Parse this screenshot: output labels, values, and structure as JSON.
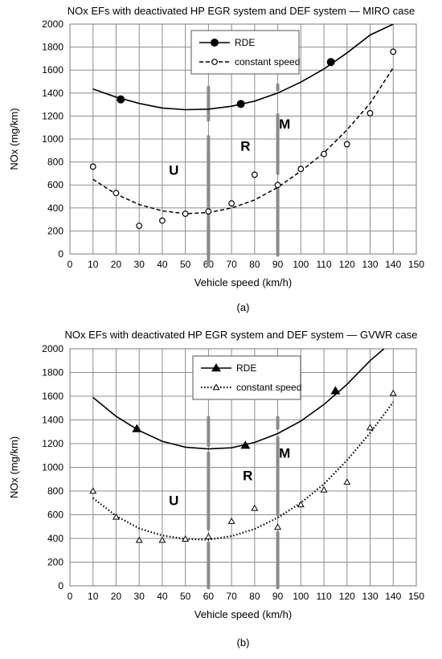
{
  "chart_data": [
    {
      "type": "line",
      "title": "NOx EFs with deactivated HP EGR system and DEF system — MIRO case",
      "xlabel": "Vehicle speed (km/h)",
      "ylabel": "NOx (mg/km)",
      "xlim": [
        0,
        150
      ],
      "ylim": [
        0,
        2000
      ],
      "xticks": [
        "0",
        "10",
        "20",
        "30",
        "40",
        "50",
        "60",
        "70",
        "80",
        "90",
        "100",
        "110",
        "120",
        "130",
        "140",
        "150"
      ],
      "yticks": [
        "0",
        "200",
        "400",
        "600",
        "800",
        "1000",
        "1200",
        "1400",
        "1600",
        "1800",
        "2000"
      ],
      "grid": true,
      "legend_position": "top-center",
      "zone_labels": [
        "U",
        "R",
        "M"
      ],
      "zone_boundaries": [
        60,
        90
      ],
      "panel_label": "(a)",
      "series": [
        {
          "name": "RDE",
          "marker": "filled-circle",
          "line": "solid",
          "points": [
            [
              22,
              1345
            ],
            [
              74,
              1305
            ],
            [
              113,
              1670
            ]
          ],
          "fit": [
            [
              10,
              1435
            ],
            [
              20,
              1365
            ],
            [
              30,
              1310
            ],
            [
              40,
              1270
            ],
            [
              50,
              1255
            ],
            [
              60,
              1260
            ],
            [
              70,
              1285
            ],
            [
              80,
              1330
            ],
            [
              90,
              1400
            ],
            [
              100,
              1495
            ],
            [
              110,
              1610
            ],
            [
              120,
              1750
            ],
            [
              130,
              1905
            ],
            [
              140,
              2000
            ]
          ]
        },
        {
          "name": "constant speed",
          "marker": "open-circle",
          "line": "dashed",
          "points": [
            [
              10,
              760
            ],
            [
              20,
              530
            ],
            [
              30,
              245
            ],
            [
              40,
              290
            ],
            [
              50,
              350
            ],
            [
              60,
              370
            ],
            [
              70,
              440
            ],
            [
              80,
              690
            ],
            [
              90,
              600
            ],
            [
              100,
              740
            ],
            [
              110,
              870
            ],
            [
              120,
              955
            ],
            [
              130,
              1225
            ],
            [
              140,
              1760
            ]
          ],
          "fit": [
            [
              10,
              650
            ],
            [
              20,
              520
            ],
            [
              30,
              430
            ],
            [
              40,
              375
            ],
            [
              50,
              350
            ],
            [
              60,
              360
            ],
            [
              70,
              400
            ],
            [
              80,
              470
            ],
            [
              90,
              580
            ],
            [
              100,
              720
            ],
            [
              110,
              880
            ],
            [
              120,
              1080
            ],
            [
              130,
              1310
            ],
            [
              140,
              1620
            ]
          ]
        }
      ]
    },
    {
      "type": "line",
      "title": "NOx EFs with deactivated HP EGR system and DEF system — GVWR case",
      "xlabel": "Vehicle speed (km/h)",
      "ylabel": "NOx (mg/km)",
      "xlim": [
        0,
        150
      ],
      "ylim": [
        0,
        2000
      ],
      "xticks": [
        "0",
        "10",
        "20",
        "30",
        "40",
        "50",
        "60",
        "70",
        "80",
        "90",
        "100",
        "110",
        "120",
        "130",
        "140",
        "150"
      ],
      "yticks": [
        "0",
        "200",
        "400",
        "600",
        "800",
        "1000",
        "1200",
        "1400",
        "1600",
        "1800",
        "2000"
      ],
      "grid": true,
      "legend_position": "top-center",
      "zone_labels": [
        "U",
        "R",
        "M"
      ],
      "zone_boundaries": [
        60,
        90
      ],
      "panel_label": "(b)",
      "series": [
        {
          "name": "RDE",
          "marker": "filled-triangle",
          "line": "solid",
          "points": [
            [
              29,
              1325
            ],
            [
              76,
              1185
            ],
            [
              115,
              1645
            ]
          ],
          "fit": [
            [
              10,
              1590
            ],
            [
              20,
              1430
            ],
            [
              30,
              1310
            ],
            [
              40,
              1220
            ],
            [
              50,
              1170
            ],
            [
              60,
              1155
            ],
            [
              70,
              1165
            ],
            [
              80,
              1210
            ],
            [
              90,
              1285
            ],
            [
              100,
              1390
            ],
            [
              110,
              1530
            ],
            [
              120,
              1700
            ],
            [
              130,
              1900
            ],
            [
              136,
              2000
            ]
          ]
        },
        {
          "name": "constant speed",
          "marker": "open-triangle",
          "line": "dotted",
          "points": [
            [
              10,
              800
            ],
            [
              20,
              580
            ],
            [
              30,
              385
            ],
            [
              40,
              385
            ],
            [
              50,
              395
            ],
            [
              60,
              415
            ],
            [
              70,
              545
            ],
            [
              80,
              655
            ],
            [
              90,
              495
            ],
            [
              100,
              685
            ],
            [
              110,
              810
            ],
            [
              120,
              875
            ],
            [
              130,
              1335
            ],
            [
              140,
              1625
            ]
          ],
          "fit": [
            [
              10,
              740
            ],
            [
              20,
              590
            ],
            [
              30,
              485
            ],
            [
              40,
              425
            ],
            [
              50,
              395
            ],
            [
              60,
              390
            ],
            [
              70,
              420
            ],
            [
              80,
              480
            ],
            [
              90,
              575
            ],
            [
              100,
              700
            ],
            [
              110,
              860
            ],
            [
              120,
              1060
            ],
            [
              130,
              1290
            ],
            [
              140,
              1550
            ]
          ]
        }
      ]
    }
  ]
}
